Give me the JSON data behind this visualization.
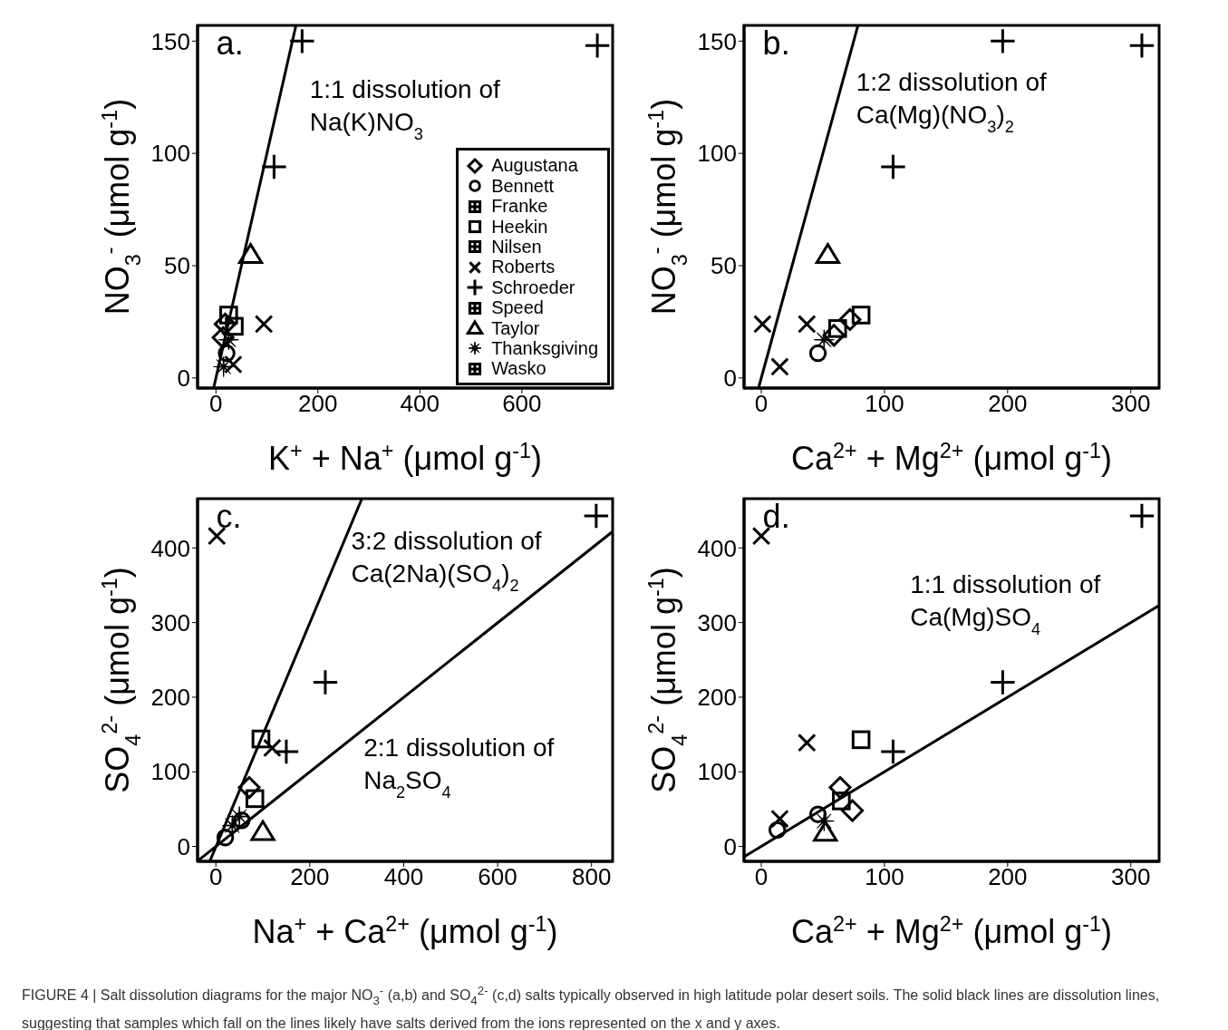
{
  "chart_data": [
    {
      "type": "scatter",
      "title": "a.",
      "xlabel": "K$^{+}$ + Na$^{+}$ (μmol g$^{-1}$)",
      "ylabel": "NO$_{3}$$^{-}$ (μmol g$^{-1}$)",
      "xlim": [
        -36,
        778
      ],
      "ylim": [
        -4.5,
        157
      ],
      "xticks": [
        0,
        200,
        400,
        600
      ],
      "yticks": [
        0,
        50,
        100,
        150
      ],
      "grid": false,
      "legend": "bottom right",
      "annotations": [
        "1:1 dissolution of\nNa(K)NO$_{3}$"
      ],
      "series": [
        {
          "name": "Augustana",
          "color": "#000000",
          "marker": "diamond",
          "x": [
            18,
            14
          ],
          "values": [
            24,
            18
          ]
        },
        {
          "name": "Bennett",
          "color": "#000000",
          "marker": "circle",
          "x": [
            21
          ],
          "values": [
            11
          ]
        },
        {
          "name": "Franke",
          "color": "#000000",
          "marker": "square-cross"
        },
        {
          "name": "Heekin",
          "color": "#000000",
          "marker": "square",
          "x": [
            25,
            36
          ],
          "values": [
            28,
            23
          ]
        },
        {
          "name": "Nilsen",
          "color": "#000000",
          "marker": "square-cross"
        },
        {
          "name": "Roberts",
          "color": "#000000",
          "marker": "x",
          "x": [
            94,
            34
          ],
          "values": [
            24,
            6
          ]
        },
        {
          "name": "Schroeder",
          "color": "#000000",
          "marker": "cross",
          "x": [
            169,
            748,
            114
          ],
          "values": [
            150,
            148,
            94
          ]
        },
        {
          "name": "Speed",
          "color": "#000000",
          "marker": "square-cross"
        },
        {
          "name": "Taylor",
          "color": "#000000",
          "marker": "triangle",
          "x": [
            68
          ],
          "values": [
            55
          ]
        },
        {
          "name": "Thanksgiving",
          "color": "#000000",
          "marker": "star",
          "x": [
            25,
            15
          ],
          "values": [
            17,
            5
          ]
        },
        {
          "name": "Wasko",
          "color": "#000000",
          "marker": "square-cross"
        },
        {
          "type": "line",
          "color": "#000000",
          "marker": "none",
          "x": [
            -4,
            157
          ],
          "values": [
            -4,
            157
          ]
        }
      ]
    },
    {
      "type": "scatter",
      "title": "b.",
      "xlabel": "Ca$^{2+}$ + Mg$^{2+}$ (μmol g$^{-1}$)",
      "ylabel": "NO$_{3}$$^{-}$ (μmol g$^{-1}$)",
      "xlim": [
        -14,
        323
      ],
      "ylim": [
        -4.5,
        157
      ],
      "xticks": [
        0,
        100,
        200,
        300
      ],
      "yticks": [
        0,
        50,
        100,
        150
      ],
      "grid": false,
      "legend": false,
      "annotations": [
        "1:2 dissolution of\nCa(Mg)(NO$_{3}$)$_{2}$"
      ],
      "series": [
        {
          "color": "#000000",
          "marker": "diamond",
          "x": [
            59,
            72
          ],
          "values": [
            19,
            26
          ]
        },
        {
          "color": "#000000",
          "marker": "circle",
          "x": [
            46
          ],
          "values": [
            11
          ]
        },
        {
          "color": "#000000",
          "marker": "square",
          "x": [
            81,
            62
          ],
          "values": [
            28,
            22
          ]
        },
        {
          "color": "#000000",
          "marker": "x",
          "x": [
            1,
            37,
            15
          ],
          "values": [
            24,
            24,
            5
          ]
        },
        {
          "color": "#000000",
          "marker": "cross",
          "x": [
            196,
            309,
            107
          ],
          "values": [
            150,
            148,
            94
          ]
        },
        {
          "color": "#000000",
          "marker": "triangle",
          "x": [
            54
          ],
          "values": [
            55
          ]
        },
        {
          "color": "#000000",
          "marker": "star",
          "x": [
            51
          ],
          "values": [
            17
          ]
        },
        {
          "type": "line",
          "color": "#000000",
          "marker": "none",
          "x": [
            -2,
            78.5
          ],
          "values": [
            -4,
            157
          ]
        }
      ]
    },
    {
      "type": "scatter",
      "title": "c.",
      "xlabel": "Na$^{+}$ + Ca$^{2+}$ (μmol g$^{-1}$)",
      "ylabel": "SO$_{4}$$^{2-}$ (μmol g$^{-1}$)",
      "xlim": [
        -39,
        845
      ],
      "ylim": [
        -20,
        466
      ],
      "xticks": [
        0,
        200,
        400,
        600,
        800
      ],
      "yticks": [
        0,
        100,
        200,
        300,
        400
      ],
      "grid": false,
      "legend": false,
      "annotations": [
        "3:2 dissolution of\nCa(2Na)(SO$_{4}$)$_{2}$",
        "2:1 dissolution of\nNa$_{2}$SO$_{4}$"
      ],
      "series": [
        {
          "color": "#000000",
          "marker": "diamond",
          "x": [
            71
          ],
          "values": [
            79
          ]
        },
        {
          "color": "#000000",
          "marker": "circle",
          "x": [
            55,
            20
          ],
          "values": [
            35,
            12
          ]
        },
        {
          "color": "#000000",
          "marker": "square",
          "x": [
            96,
            83
          ],
          "values": [
            144,
            64
          ]
        },
        {
          "color": "#000000",
          "marker": "x",
          "x": [
            2,
            120
          ],
          "values": [
            416,
            132
          ]
        },
        {
          "color": "#000000",
          "marker": "cross",
          "x": [
            810,
            233,
            150
          ],
          "values": [
            443,
            220,
            127
          ]
        },
        {
          "color": "#000000",
          "marker": "triangle",
          "x": [
            100
          ],
          "values": [
            20
          ]
        },
        {
          "color": "#000000",
          "marker": "star",
          "x": [
            50,
            35
          ],
          "values": [
            40,
            28
          ]
        },
        {
          "type": "line",
          "color": "#000000",
          "marker": "none",
          "x": [
            -13,
            311
          ],
          "values": [
            -20,
            466
          ]
        },
        {
          "type": "line",
          "color": "#000000",
          "marker": "none",
          "x": [
            -38,
            845
          ],
          "values": [
            -19,
            422
          ]
        }
      ]
    },
    {
      "type": "scatter",
      "title": "d.",
      "xlabel": "Ca$^{2+}$ + Mg$^{2+}$ (μmol g$^{-1}$)",
      "ylabel": "SO$_{4}$$^{2-}$ (μmol g$^{-1}$)",
      "xlim": [
        -14,
        323
      ],
      "ylim": [
        -20,
        466
      ],
      "xticks": [
        0,
        100,
        200,
        300
      ],
      "yticks": [
        0,
        100,
        200,
        300,
        400
      ],
      "grid": false,
      "legend": false,
      "annotations": [
        "1:1 dissolution of\nCa(Mg)SO$_{4}$",
        "FIGURE 4 | Salt dissolution diagrams for the major NO$_{3}$$^{-}$ (a,b) and SO$_{4}$$^{2-}$ (c,d) salts typically observed in high latitude polar desert soils. The solid black lines are dissolution lines, suggesting that samples which fall on the lines likely have salts derived from the ions represented on the x and y axes."
      ],
      "series": [
        {
          "color": "#000000",
          "marker": "diamond",
          "x": [
            64,
            74
          ],
          "values": [
            79,
            48
          ]
        },
        {
          "color": "#000000",
          "marker": "circle",
          "x": [
            46,
            13
          ],
          "values": [
            43,
            22
          ]
        },
        {
          "color": "#000000",
          "marker": "square",
          "x": [
            81,
            65
          ],
          "values": [
            143,
            61
          ]
        },
        {
          "color": "#000000",
          "marker": "x",
          "x": [
            0,
            37,
            15
          ],
          "values": [
            416,
            139,
            37
          ]
        },
        {
          "color": "#000000",
          "marker": "cross",
          "x": [
            309,
            196,
            107
          ],
          "values": [
            443,
            220,
            127
          ]
        },
        {
          "color": "#000000",
          "marker": "triangle",
          "x": [
            52
          ],
          "values": [
            19
          ]
        },
        {
          "color": "#000000",
          "marker": "star",
          "x": [
            51
          ],
          "values": [
            34
          ]
        },
        {
          "type": "line",
          "color": "#000000",
          "marker": "none",
          "x": [
            -14,
            323
          ],
          "values": [
            -14,
            323
          ]
        }
      ]
    }
  ]
}
